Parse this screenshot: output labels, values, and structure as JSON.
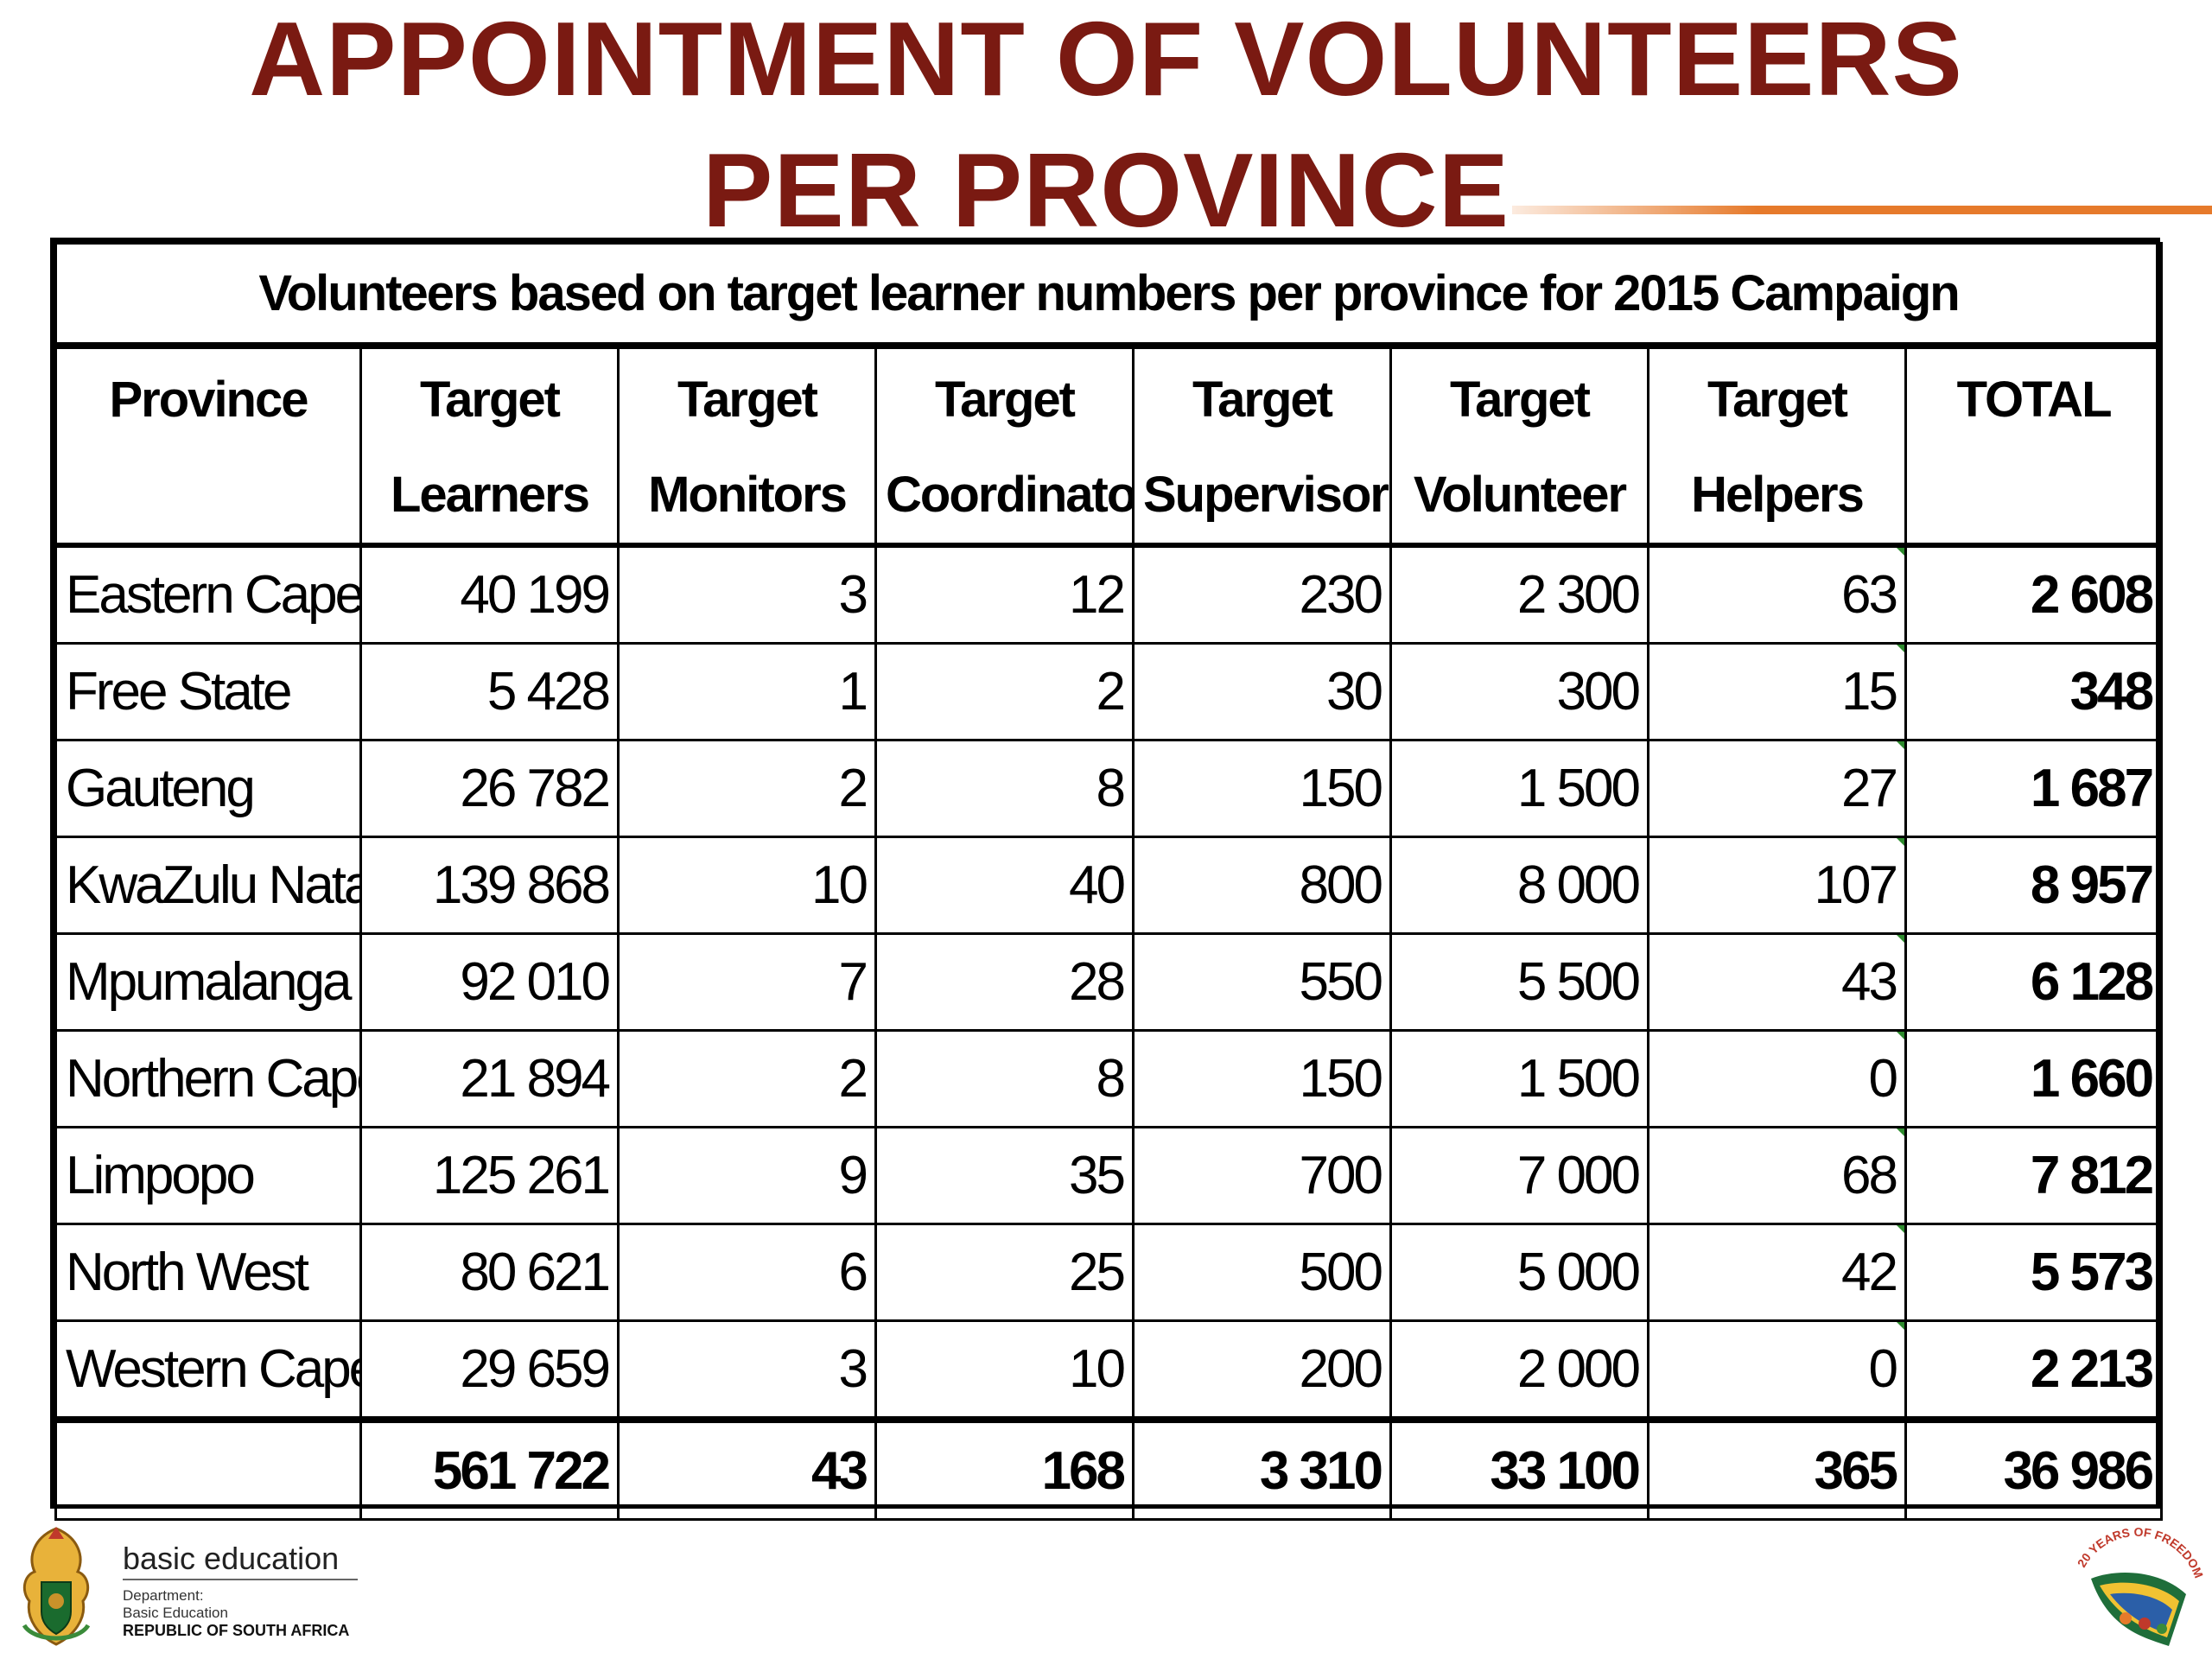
{
  "page": {
    "title_line1": "APPOINTMENT OF VOLUNTEERS",
    "title_line2": "PER PROVINCE"
  },
  "table": {
    "caption": "Volunteers based on target learner numbers per province for 2015 Campaign",
    "headers": [
      [
        "Province",
        ""
      ],
      [
        "Target",
        "Learners"
      ],
      [
        "Target",
        "Monitors"
      ],
      [
        "Target",
        "Coordinators"
      ],
      [
        "Target",
        "Supervisor"
      ],
      [
        "Target",
        "Volunteer"
      ],
      [
        "Target",
        "Helpers"
      ],
      [
        "TOTAL",
        ""
      ]
    ],
    "rows": [
      [
        "Eastern Cape",
        "40 199",
        "3",
        "12",
        "230",
        "2 300",
        "63",
        "2 608"
      ],
      [
        "Free State",
        "5 428",
        "1",
        "2",
        "30",
        "300",
        "15",
        "348"
      ],
      [
        "Gauteng",
        "26 782",
        "2",
        "8",
        "150",
        "1 500",
        "27",
        "1 687"
      ],
      [
        "KwaZulu Natal",
        "139 868",
        "10",
        "40",
        "800",
        "8 000",
        "107",
        "8 957"
      ],
      [
        "Mpumalanga",
        "92 010",
        "7",
        "28",
        "550",
        "5 500",
        "43",
        "6 128"
      ],
      [
        "Northern Cape",
        "21 894",
        "2",
        "8",
        "150",
        "1 500",
        "0",
        "1 660"
      ],
      [
        "Limpopo",
        "125 261",
        "9",
        "35",
        "700",
        "7 000",
        "68",
        "7 812"
      ],
      [
        "North West",
        "80 621",
        "6",
        "25",
        "500",
        "5 000",
        "42",
        "5 573"
      ],
      [
        "Western Cape",
        "29 659",
        "3",
        "10",
        "200",
        "2 000",
        "0",
        "2 213"
      ]
    ],
    "totals": [
      "",
      "561 722",
      "43",
      "168",
      "3 310",
      "33 100",
      "365",
      "36 986"
    ]
  },
  "footer": {
    "brand": "basic education",
    "dept_line1": "Department:",
    "dept_line2": "Basic Education",
    "dept_line3": "REPUBLIC OF SOUTH AFRICA",
    "logo_right_text": "20 YEARS OF FREEDOM",
    "crest_icon": "coat-of-arms-icon"
  },
  "colors": {
    "title": "#7a1a12",
    "accent": "#e67a2b",
    "marker": "#2e8b2e"
  }
}
